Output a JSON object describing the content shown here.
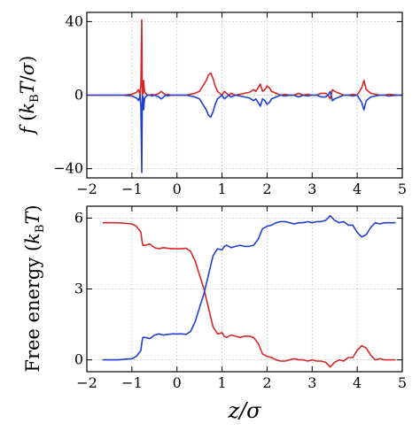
{
  "chart_data": [
    {
      "type": "line",
      "panel": "top",
      "ylabel": "f (k_B T/σ)",
      "xlim": [
        -2,
        5
      ],
      "ylim": [
        -45,
        45
      ],
      "xticks": [
        -2,
        -1,
        0,
        1,
        2,
        3,
        4,
        5
      ],
      "xtick_labels": [
        "−2",
        "−1",
        "0",
        "1",
        "2",
        "3",
        "4",
        "5"
      ],
      "yticks": [
        -40,
        0,
        40
      ],
      "ytick_labels": [
        "−40",
        "0",
        "40"
      ],
      "grid": true,
      "series": [
        {
          "color": "#d62728",
          "x": [
            -2.0,
            -1.2,
            -1.0,
            -0.9,
            -0.85,
            -0.82,
            -0.8,
            -0.78,
            -0.77,
            -0.76,
            -0.75,
            -0.74,
            -0.72,
            -0.7,
            -0.65,
            -0.6,
            -0.55,
            -0.5,
            -0.45,
            -0.4,
            -0.35,
            -0.3,
            -0.25,
            -0.2,
            -0.15,
            -0.1,
            0.0,
            0.1,
            0.2,
            0.3,
            0.4,
            0.5,
            0.55,
            0.6,
            0.65,
            0.7,
            0.75,
            0.8,
            0.85,
            0.9,
            0.95,
            1.0,
            1.05,
            1.1,
            1.15,
            1.2,
            1.3,
            1.4,
            1.5,
            1.6,
            1.7,
            1.75,
            1.8,
            1.85,
            1.9,
            1.95,
            2.0,
            2.05,
            2.1,
            2.2,
            2.3,
            2.4,
            2.5,
            2.6,
            2.7,
            2.8,
            2.9,
            3.0,
            3.1,
            3.2,
            3.3,
            3.35,
            3.4,
            3.45,
            3.5,
            3.6,
            3.7,
            3.8,
            3.9,
            4.0,
            4.05,
            4.1,
            4.15,
            4.2,
            4.3,
            4.4,
            4.5,
            4.6,
            4.7,
            4.8,
            4.9,
            5.0
          ],
          "y": [
            0,
            0,
            0.5,
            1.5,
            3,
            0,
            6,
            41,
            0,
            2,
            1,
            8,
            2,
            1,
            0,
            0,
            0.5,
            0,
            0.5,
            1,
            2,
            1,
            0,
            0.5,
            0,
            0,
            0,
            0,
            0,
            0.5,
            1,
            2,
            4,
            6,
            8,
            11,
            12,
            9,
            5,
            2,
            1,
            0,
            2,
            1,
            0,
            1,
            0,
            0.5,
            1,
            1.5,
            3,
            2,
            4,
            6,
            2,
            3,
            5,
            4,
            2,
            1,
            0,
            0.5,
            0,
            0,
            1,
            0,
            0.5,
            0,
            0,
            1,
            1,
            0,
            -2,
            3,
            2,
            1,
            0,
            0,
            0.5,
            0,
            2,
            4,
            8,
            3,
            1,
            0.5,
            0,
            0,
            0.5,
            0.2,
            0,
            0
          ]
        },
        {
          "color": "#1f3fcf",
          "x": [
            -2.0,
            -1.2,
            -1.0,
            -0.9,
            -0.85,
            -0.82,
            -0.8,
            -0.78,
            -0.77,
            -0.76,
            -0.75,
            -0.74,
            -0.72,
            -0.7,
            -0.65,
            -0.6,
            -0.55,
            -0.5,
            -0.45,
            -0.4,
            -0.35,
            -0.3,
            -0.25,
            -0.2,
            -0.15,
            -0.1,
            0.0,
            0.1,
            0.2,
            0.3,
            0.4,
            0.5,
            0.55,
            0.6,
            0.65,
            0.7,
            0.75,
            0.8,
            0.85,
            0.9,
            0.95,
            1.0,
            1.05,
            1.1,
            1.15,
            1.2,
            1.3,
            1.4,
            1.5,
            1.6,
            1.7,
            1.75,
            1.8,
            1.85,
            1.9,
            1.95,
            2.0,
            2.05,
            2.1,
            2.2,
            2.3,
            2.4,
            2.5,
            2.6,
            2.7,
            2.8,
            2.9,
            3.0,
            3.1,
            3.2,
            3.3,
            3.35,
            3.4,
            3.45,
            3.5,
            3.6,
            3.7,
            3.8,
            3.9,
            4.0,
            4.05,
            4.1,
            4.15,
            4.2,
            4.3,
            4.4,
            4.5,
            4.6,
            4.7,
            4.8,
            4.9,
            5.0
          ],
          "y": [
            0,
            0,
            -0.5,
            -1.5,
            -3,
            0,
            -6,
            -42,
            0,
            -2,
            -1,
            -8,
            -2,
            -1,
            0,
            0,
            -0.5,
            0,
            -0.5,
            -1,
            -2,
            -1,
            0,
            -0.5,
            0,
            0,
            0,
            0,
            0,
            -0.5,
            -1,
            -2,
            -4,
            -6,
            -8,
            -11,
            -12,
            -9,
            -5,
            -2,
            -1,
            0,
            -2,
            -1,
            0,
            -1,
            0,
            -0.5,
            -1,
            -1.5,
            -3,
            -2,
            -4,
            -6,
            -2,
            -3,
            -5,
            -4,
            -2,
            -1,
            0,
            -0.5,
            0,
            0,
            -1,
            0,
            -0.5,
            0,
            0,
            -1,
            -1,
            0,
            2,
            -3,
            -2,
            -1,
            0,
            0,
            -0.5,
            0,
            -2,
            -4,
            -8,
            -3,
            -1,
            -0.5,
            0,
            0,
            -0.5,
            -0.2,
            0,
            0
          ]
        }
      ]
    },
    {
      "type": "line",
      "panel": "bottom",
      "xlabel": "z/σ",
      "ylabel": "Free energy (k_B T)",
      "xlim": [
        -2,
        5
      ],
      "ylim": [
        -0.5,
        6.5
      ],
      "xticks": [
        -2,
        -1,
        0,
        1,
        2,
        3,
        4,
        5
      ],
      "xtick_labels": [
        "−2",
        "−1",
        "0",
        "1",
        "2",
        "3",
        "4",
        "5"
      ],
      "yticks": [
        0,
        3,
        6
      ],
      "ytick_labels": [
        "0",
        "3",
        "6"
      ],
      "grid": true,
      "series": [
        {
          "color": "#d62728",
          "x": [
            -1.65,
            -1.3,
            -1.0,
            -0.9,
            -0.8,
            -0.78,
            -0.76,
            -0.7,
            -0.6,
            -0.5,
            -0.4,
            -0.3,
            -0.2,
            -0.1,
            0.0,
            0.1,
            0.2,
            0.3,
            0.4,
            0.5,
            0.6,
            0.7,
            0.8,
            0.9,
            1.0,
            1.05,
            1.1,
            1.2,
            1.3,
            1.4,
            1.5,
            1.6,
            1.7,
            1.8,
            1.9,
            2.0,
            2.1,
            2.2,
            2.3,
            2.4,
            2.5,
            2.6,
            2.7,
            2.8,
            2.9,
            3.0,
            3.1,
            3.2,
            3.3,
            3.4,
            3.5,
            3.6,
            3.7,
            3.8,
            3.9,
            4.0,
            4.1,
            4.2,
            4.3,
            4.4,
            4.5,
            4.6,
            4.7,
            4.85
          ],
          "y": [
            5.8,
            5.8,
            5.75,
            5.65,
            5.4,
            5.1,
            4.85,
            4.85,
            4.9,
            4.75,
            4.7,
            4.75,
            4.72,
            4.7,
            4.7,
            4.7,
            4.72,
            4.6,
            4.2,
            3.6,
            3.0,
            2.2,
            1.4,
            1.1,
            1.15,
            1.0,
            0.95,
            1.05,
            1.0,
            0.95,
            1.0,
            1.0,
            0.95,
            0.7,
            0.25,
            0.15,
            0.1,
            0.0,
            -0.05,
            -0.05,
            0.0,
            0.05,
            0.0,
            0.0,
            -0.05,
            0.0,
            -0.05,
            -0.05,
            -0.1,
            -0.3,
            -0.1,
            0.0,
            -0.05,
            0.1,
            0.1,
            0.4,
            0.6,
            0.5,
            0.2,
            0.0,
            0.05,
            0.0,
            0.0,
            0.0
          ]
        },
        {
          "color": "#1f3fcf",
          "x": [
            -1.65,
            -1.3,
            -1.0,
            -0.9,
            -0.8,
            -0.78,
            -0.76,
            -0.7,
            -0.6,
            -0.5,
            -0.4,
            -0.3,
            -0.2,
            -0.1,
            0.0,
            0.1,
            0.2,
            0.3,
            0.4,
            0.5,
            0.6,
            0.7,
            0.8,
            0.9,
            1.0,
            1.05,
            1.1,
            1.2,
            1.3,
            1.4,
            1.5,
            1.6,
            1.7,
            1.8,
            1.9,
            2.0,
            2.1,
            2.2,
            2.3,
            2.4,
            2.5,
            2.6,
            2.7,
            2.8,
            2.9,
            3.0,
            3.1,
            3.2,
            3.3,
            3.4,
            3.5,
            3.6,
            3.7,
            3.8,
            3.9,
            4.0,
            4.1,
            4.2,
            4.3,
            4.4,
            4.5,
            4.6,
            4.7,
            4.85
          ],
          "y": [
            0.0,
            0.0,
            0.05,
            0.15,
            0.4,
            0.7,
            0.95,
            0.95,
            0.9,
            1.05,
            1.1,
            1.05,
            1.08,
            1.1,
            1.1,
            1.1,
            1.08,
            1.2,
            1.6,
            2.2,
            2.8,
            3.6,
            4.4,
            4.7,
            4.65,
            4.8,
            4.85,
            4.75,
            4.8,
            4.85,
            4.8,
            4.8,
            4.85,
            5.1,
            5.55,
            5.65,
            5.7,
            5.8,
            5.85,
            5.85,
            5.8,
            5.75,
            5.8,
            5.8,
            5.85,
            5.8,
            5.85,
            5.85,
            5.9,
            6.1,
            5.9,
            5.8,
            5.85,
            5.7,
            5.7,
            5.4,
            5.2,
            5.3,
            5.6,
            5.8,
            5.75,
            5.8,
            5.8,
            5.8
          ]
        }
      ]
    }
  ]
}
